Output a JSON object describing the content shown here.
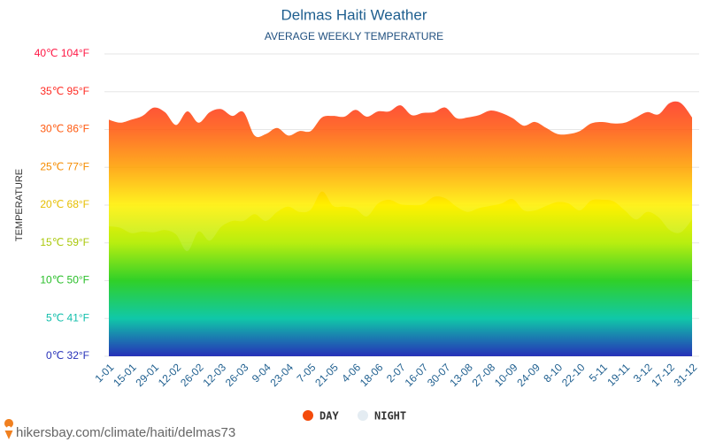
{
  "chart_data": {
    "type": "area",
    "title": "Delmas Haiti Weather",
    "subtitle": "AVERAGE WEEKLY TEMPERATURE",
    "y_label": "TEMPERATURE",
    "footer": "hikersbay.com/climate/haiti/delmas73",
    "categories": [
      "1-01",
      null,
      "15-01",
      null,
      "29-01",
      null,
      "12-02",
      null,
      "26-02",
      null,
      "12-03",
      null,
      "26-03",
      null,
      "9-04",
      null,
      "23-04",
      null,
      "7-05",
      null,
      "21-05",
      null,
      "4-06",
      null,
      "18-06",
      null,
      "2-07",
      null,
      "16-07",
      null,
      "30-07",
      null,
      "13-08",
      null,
      "27-08",
      null,
      "10-09",
      null,
      "24-09",
      null,
      "8-10",
      null,
      "22-10",
      null,
      "5-11",
      null,
      "19-11",
      null,
      "3-12",
      null,
      "17-12",
      null,
      "31-12"
    ],
    "series": [
      {
        "name": "DAY",
        "color": "#f44b0b",
        "values": [
          31.3,
          30.9,
          31.3,
          31.8,
          32.9,
          32.3,
          30.6,
          32.4,
          30.9,
          32.3,
          32.7,
          31.8,
          32.3,
          29.2,
          29.4,
          30.2,
          29.2,
          29.8,
          29.8,
          31.6,
          31.8,
          31.7,
          32.6,
          31.7,
          32.4,
          32.4,
          33.2,
          31.9,
          32.2,
          32.3,
          32.9,
          31.5,
          31.6,
          31.9,
          32.5,
          32.2,
          31.5,
          30.5,
          31.0,
          30.2,
          29.4,
          29.4,
          29.8,
          30.8,
          31.0,
          30.8,
          30.9,
          31.6,
          32.3,
          32.0,
          33.5,
          33.5,
          31.6
        ]
      },
      {
        "name": "NIGHT",
        "color": "#e4ecf2",
        "values": [
          17.2,
          17.0,
          16.3,
          16.5,
          16.4,
          16.7,
          16.1,
          13.9,
          16.5,
          15.3,
          17.1,
          17.9,
          17.9,
          18.8,
          17.9,
          19.1,
          19.8,
          19.1,
          19.4,
          21.8,
          19.9,
          19.8,
          19.5,
          18.5,
          20.2,
          20.7,
          20.1,
          20.0,
          20.1,
          21.1,
          20.9,
          19.8,
          19.1,
          19.6,
          19.9,
          20.2,
          20.8,
          19.3,
          19.3,
          19.9,
          20.4,
          20.2,
          19.3,
          20.6,
          20.7,
          20.5,
          19.3,
          18.1,
          19.1,
          18.4,
          16.7,
          16.4,
          18.1
        ]
      }
    ],
    "ylim": [
      0,
      40
    ],
    "yticks": [
      {
        "value": 0,
        "label": "0℃ 32°F"
      },
      {
        "value": 5,
        "label": "5℃ 41°F"
      },
      {
        "value": 10,
        "label": "10℃ 50°F"
      },
      {
        "value": 15,
        "label": "15℃ 59°F"
      },
      {
        "value": 20,
        "label": "20℃ 68°F"
      },
      {
        "value": 25,
        "label": "25℃ 77°F"
      },
      {
        "value": 30,
        "label": "30℃ 86°F"
      },
      {
        "value": 35,
        "label": "35℃ 95°F"
      },
      {
        "value": 40,
        "label": "40℃ 104°F"
      }
    ],
    "grid": true
  }
}
